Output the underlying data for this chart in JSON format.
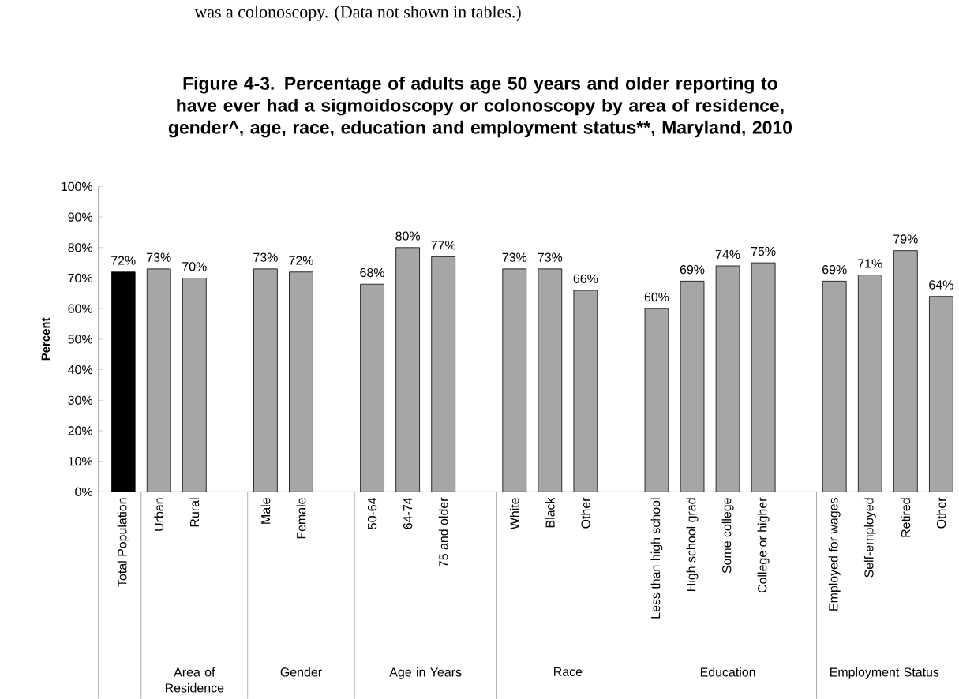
{
  "chart_data": {
    "type": "bar",
    "title": "Figure 4-3.  Percentage of adults age 50 years and older reporting to have ever had a sigmoidoscopy or colonoscopy by area of residence**, gender^, age**, race**, education** and employment status**, Maryland, 2010",
    "ylabel": "Percent",
    "categories": [
      "Total Population",
      "Urban",
      "Rural",
      null,
      "Male",
      "Female",
      null,
      "50-64",
      "64-74",
      "75 and older",
      null,
      "White",
      "Black",
      "Other",
      null,
      "Less than high school",
      "High school grad",
      "Some college",
      "College or higher",
      null,
      "Employed for wages",
      "Self-employed",
      "Retired",
      "Other"
    ],
    "values": [
      72,
      73,
      70,
      null,
      73,
      72,
      null,
      68,
      80,
      77,
      null,
      73,
      73,
      66,
      null,
      60,
      69,
      74,
      75,
      null,
      69,
      71,
      79,
      64
    ],
    "value_labels": [
      "72%",
      "73%",
      "70%",
      null,
      "73%",
      "72%",
      null,
      "68%",
      "80%",
      "77%",
      null,
      "73%",
      "73%",
      "66%",
      null,
      "60%",
      "69%",
      "74%",
      "75%",
      null,
      "69%",
      "71%",
      "79%",
      "64%"
    ],
    "colors": [
      "#000000",
      "#a6a6a6",
      "#a6a6a6",
      null,
      "#a6a6a6",
      "#a6a6a6",
      null,
      "#a6a6a6",
      "#a6a6a6",
      "#a6a6a6",
      null,
      "#a6a6a6",
      "#a6a6a6",
      "#a6a6a6",
      null,
      "#a6a6a6",
      "#a6a6a6",
      "#a6a6a6",
      "#a6a6a6",
      null,
      "#a6a6a6",
      "#a6a6a6",
      "#a6a6a6",
      "#a6a6a6"
    ],
    "ylim": [
      0,
      100
    ],
    "yticks": [
      {
        "value": 0,
        "label": "0%"
      },
      {
        "value": 10,
        "label": "10%"
      },
      {
        "value": 20,
        "label": "20%"
      },
      {
        "value": 30,
        "label": "30%"
      },
      {
        "value": 40,
        "label": "40%"
      },
      {
        "value": 50,
        "label": "50%"
      },
      {
        "value": 60,
        "label": "60%"
      },
      {
        "value": 70,
        "label": "70%"
      },
      {
        "value": 80,
        "label": "80%"
      },
      {
        "value": 90,
        "label": "90%"
      },
      {
        "value": 100,
        "label": "100%"
      }
    ],
    "annotations": [
      "was a colonoscopy.  (Data not shown in tables.)",
      "Area of Residence",
      "Gender",
      "Age in Years",
      "Race",
      "Education",
      "Employment Status"
    ],
    "grid": false
  }
}
